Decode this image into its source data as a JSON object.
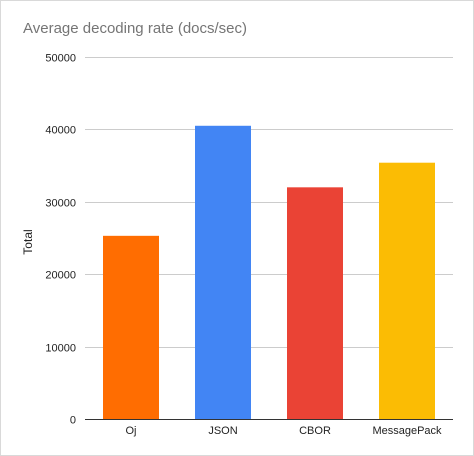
{
  "chart_data": {
    "type": "bar",
    "title": "Average decoding rate (docs/sec)",
    "xlabel": "",
    "ylabel": "Total",
    "categories": [
      "Oj",
      "JSON",
      "CBOR",
      "MessagePack"
    ],
    "values": [
      25300,
      40500,
      32000,
      35400
    ],
    "colors": [
      "#ff6d01",
      "#4285f4",
      "#ea4335",
      "#fbbc04"
    ],
    "ylim": [
      0,
      50000
    ],
    "yticks": [
      "0",
      "10000",
      "20000",
      "30000",
      "40000",
      "50000"
    ],
    "grid": true,
    "legend": "none"
  }
}
